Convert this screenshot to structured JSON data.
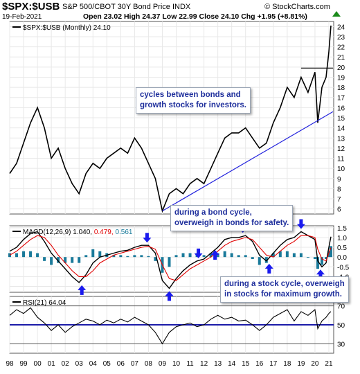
{
  "header": {
    "symbol": "$SPX:$USB",
    "description": "S&P 500/CBOT 30Y Bond Price INDX",
    "date": "19-Feb-2021",
    "ohlc": "Open 23.02  High 24.37  Low 22.99  Close 24.10  Chg +1.95 (+8.81%)",
    "source": "© StockCharts.com",
    "change_color": "#1a8a1a"
  },
  "chart_data": [
    {
      "type": "line",
      "panel": "price",
      "legend_label": "$SPX:$USB (Monthly) 24.10",
      "x": [
        1998.0,
        1998.5,
        1999.0,
        1999.5,
        2000.0,
        2000.5,
        2001.0,
        2001.5,
        2002.0,
        2002.5,
        2003.0,
        2003.5,
        2004.0,
        2004.5,
        2005.0,
        2005.5,
        2006.0,
        2006.5,
        2007.0,
        2007.5,
        2008.0,
        2008.5,
        2009.0,
        2009.5,
        2010.0,
        2010.5,
        2011.0,
        2011.5,
        2012.0,
        2012.5,
        2013.0,
        2013.5,
        2014.0,
        2014.5,
        2015.0,
        2015.5,
        2016.0,
        2016.5,
        2017.0,
        2017.5,
        2018.0,
        2018.5,
        2019.0,
        2019.5,
        2020.0,
        2020.2,
        2020.5,
        2020.8,
        2021.0,
        2021.15
      ],
      "y": [
        9.5,
        10.5,
        12.5,
        14.5,
        16.0,
        14.0,
        11.0,
        12.0,
        10.0,
        8.5,
        7.5,
        9.5,
        10.5,
        10.0,
        11.0,
        11.5,
        12.0,
        11.5,
        13.0,
        12.0,
        10.5,
        9.0,
        5.8,
        7.5,
        8.0,
        7.5,
        8.5,
        9.0,
        8.5,
        10.0,
        11.5,
        13.0,
        13.5,
        13.5,
        14.0,
        13.0,
        12.0,
        12.5,
        14.5,
        16.0,
        18.0,
        17.0,
        19.0,
        17.5,
        19.5,
        14.5,
        18.0,
        19.0,
        21.5,
        24.1
      ],
      "ylim": [
        5.5,
        24.5
      ],
      "y_ticks": [
        6,
        7,
        8,
        9,
        10,
        11,
        12,
        13,
        14,
        15,
        16,
        17,
        18,
        19,
        20,
        21,
        22,
        23,
        24
      ]
    },
    {
      "type": "line",
      "panel": "macd",
      "legend_label": "MACD(12,26,9)",
      "legend_values": [
        "1.040",
        "0.479",
        "0.561"
      ],
      "legend_colors": [
        "#000000",
        "#e00000",
        "#1a7a9a"
      ],
      "x": [
        1998.0,
        1998.5,
        1999.0,
        1999.5,
        2000.0,
        2000.5,
        2001.0,
        2001.5,
        2002.0,
        2002.5,
        2003.0,
        2003.5,
        2004.0,
        2004.5,
        2005.0,
        2005.5,
        2006.0,
        2006.5,
        2007.0,
        2007.5,
        2008.0,
        2008.5,
        2009.0,
        2009.5,
        2010.0,
        2010.5,
        2011.0,
        2011.5,
        2012.0,
        2012.5,
        2013.0,
        2013.5,
        2014.0,
        2014.5,
        2015.0,
        2015.5,
        2016.0,
        2016.5,
        2017.0,
        2017.5,
        2018.0,
        2018.5,
        2019.0,
        2019.5,
        2020.0,
        2020.2,
        2020.5,
        2020.8,
        2021.0,
        2021.15
      ],
      "macd": [
        0.3,
        0.5,
        0.9,
        1.2,
        1.3,
        0.8,
        0.2,
        -0.2,
        -0.6,
        -1.0,
        -1.3,
        -0.9,
        -0.3,
        0.0,
        0.1,
        0.2,
        0.3,
        0.35,
        0.5,
        0.6,
        0.6,
        0.2,
        -1.2,
        -1.6,
        -1.1,
        -0.7,
        -0.4,
        -0.2,
        -0.1,
        0.2,
        0.5,
        0.9,
        1.0,
        1.0,
        1.1,
        0.8,
        0.1,
        -0.2,
        0.2,
        0.6,
        0.9,
        1.0,
        1.3,
        1.1,
        0.9,
        -0.2,
        -0.5,
        -0.3,
        0.5,
        1.04
      ],
      "signal": [
        0.1,
        0.3,
        0.6,
        0.9,
        1.1,
        1.0,
        0.6,
        0.1,
        -0.3,
        -0.7,
        -1.0,
        -1.0,
        -0.7,
        -0.3,
        -0.1,
        0.1,
        0.2,
        0.3,
        0.4,
        0.5,
        0.55,
        0.4,
        -0.4,
        -1.1,
        -1.2,
        -0.9,
        -0.6,
        -0.4,
        -0.2,
        0.0,
        0.3,
        0.6,
        0.8,
        0.9,
        1.0,
        0.9,
        0.5,
        0.1,
        0.0,
        0.3,
        0.6,
        0.8,
        1.1,
        1.1,
        1.0,
        0.4,
        -0.1,
        -0.2,
        0.2,
        0.48
      ],
      "ylim": [
        -1.8,
        1.6
      ],
      "y_ticks": [
        1.5,
        1.0,
        0.5,
        0.0,
        -0.5,
        -1.0,
        -1.5
      ],
      "y_tick_labels": [
        "1.5",
        "1.0",
        "0.5",
        "0.0",
        "-0.5",
        "-1.0",
        "-1.5"
      ]
    },
    {
      "type": "line",
      "panel": "rsi",
      "legend_label": "RSI(21) 64.04",
      "x": [
        1998.0,
        1998.5,
        1999.0,
        1999.5,
        2000.0,
        2000.5,
        2001.0,
        2001.5,
        2002.0,
        2002.5,
        2003.0,
        2003.5,
        2004.0,
        2004.5,
        2005.0,
        2005.5,
        2006.0,
        2006.5,
        2007.0,
        2007.5,
        2008.0,
        2008.5,
        2009.0,
        2009.5,
        2010.0,
        2010.5,
        2011.0,
        2011.5,
        2012.0,
        2012.5,
        2013.0,
        2013.5,
        2014.0,
        2014.5,
        2015.0,
        2015.5,
        2016.0,
        2016.5,
        2017.0,
        2017.5,
        2018.0,
        2018.5,
        2019.0,
        2019.5,
        2020.0,
        2020.2,
        2020.5,
        2020.8,
        2021.0,
        2021.15
      ],
      "y": [
        60,
        66,
        62,
        68,
        58,
        52,
        44,
        50,
        42,
        48,
        52,
        56,
        54,
        50,
        55,
        52,
        56,
        53,
        58,
        54,
        50,
        42,
        30,
        42,
        48,
        50,
        52,
        48,
        50,
        56,
        60,
        56,
        58,
        54,
        55,
        50,
        44,
        50,
        58,
        62,
        66,
        54,
        64,
        60,
        66,
        46,
        54,
        58,
        62,
        64.04
      ],
      "ylim": [
        20,
        80
      ],
      "y_ticks": [
        70,
        50,
        30
      ],
      "y_tick_labels": [
        "70",
        "50",
        "30"
      ]
    }
  ],
  "x_axis_labels": [
    "98",
    "99",
    "00",
    "01",
    "02",
    "03",
    "04",
    "05",
    "06",
    "07",
    "08",
    "09",
    "10",
    "11",
    "12",
    "13",
    "14",
    "15",
    "16",
    "17",
    "18",
    "19",
    "20",
    "21"
  ],
  "x_axis_years": [
    1998,
    1999,
    2000,
    2001,
    2002,
    2003,
    2004,
    2005,
    2006,
    2007,
    2008,
    2009,
    2010,
    2011,
    2012,
    2013,
    2014,
    2015,
    2016,
    2017,
    2018,
    2019,
    2020,
    2021
  ],
  "annotations": {
    "callout_1": "cycles between bonds and growth stocks for investors.",
    "callout_1_lines": [
      "cycles between bonds and",
      "growth stocks for investors."
    ],
    "callout_2_lines": [
      "during a bond cycle,",
      "overweigh in bonds for safety."
    ],
    "callout_3_lines": [
      "during a stock cycle, overweigh",
      "in stocks for maximum growth."
    ],
    "trendline": {
      "from": [
        2009.0,
        5.8
      ],
      "to": [
        2021.3,
        15.6
      ]
    },
    "resistance": {
      "from": [
        2019.0,
        19.9
      ],
      "to": [
        2021.3,
        19.9
      ]
    },
    "arrows_down_years": [
      2007.9,
      2011.6,
      2014.8,
      2019.0
    ],
    "arrows_up_years": [
      2003.2,
      2009.5,
      2012.8,
      2016.7,
      2020.4
    ]
  },
  "colors": {
    "price_line": "#000000",
    "trendline": "#2222dd",
    "macd": "#000000",
    "signal": "#e00000",
    "histogram": "#1a7a9a",
    "rsi_band": "#1a1aa8",
    "arrow": "#1a1aee",
    "grid": "#e8e8e8"
  }
}
